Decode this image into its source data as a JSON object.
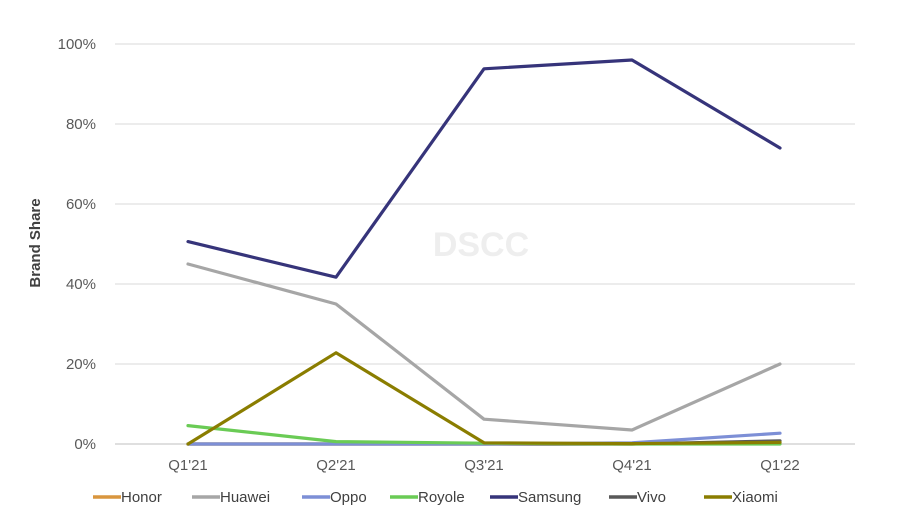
{
  "chart_data": {
    "type": "line",
    "ylabel": "Brand Share",
    "watermark": "DSCC",
    "categories": [
      "Q1'21",
      "Q2'21",
      "Q3'21",
      "Q4'21",
      "Q1'22"
    ],
    "ylim": [
      0,
      100
    ],
    "yticks": [
      0,
      20,
      40,
      60,
      80,
      100
    ],
    "ytick_labels": [
      "0%",
      "20%",
      "40%",
      "60%",
      "80%",
      "100%"
    ],
    "grid": true,
    "legend_position": "bottom",
    "series": [
      {
        "name": "Honor",
        "color": "#D9963E",
        "values": [
          0,
          0,
          0,
          0,
          0.3
        ]
      },
      {
        "name": "Huawei",
        "color": "#A6A6A6",
        "values": [
          45,
          35,
          6.2,
          3.5,
          20
        ]
      },
      {
        "name": "Oppo",
        "color": "#7D8FD6",
        "values": [
          0,
          0,
          0,
          0.3,
          2.7
        ]
      },
      {
        "name": "Royole",
        "color": "#6ACB55",
        "values": [
          4.6,
          0.6,
          0.2,
          0,
          0
        ]
      },
      {
        "name": "Samsung",
        "color": "#36347A",
        "values": [
          50.6,
          41.7,
          93.8,
          96,
          74
        ]
      },
      {
        "name": "Vivo",
        "color": "#595959",
        "values": [
          0,
          0,
          0,
          0,
          0.8
        ]
      },
      {
        "name": "Xiaomi",
        "color": "#8A7D00",
        "values": [
          0,
          22.8,
          0.3,
          0.1,
          0.4
        ]
      }
    ]
  }
}
